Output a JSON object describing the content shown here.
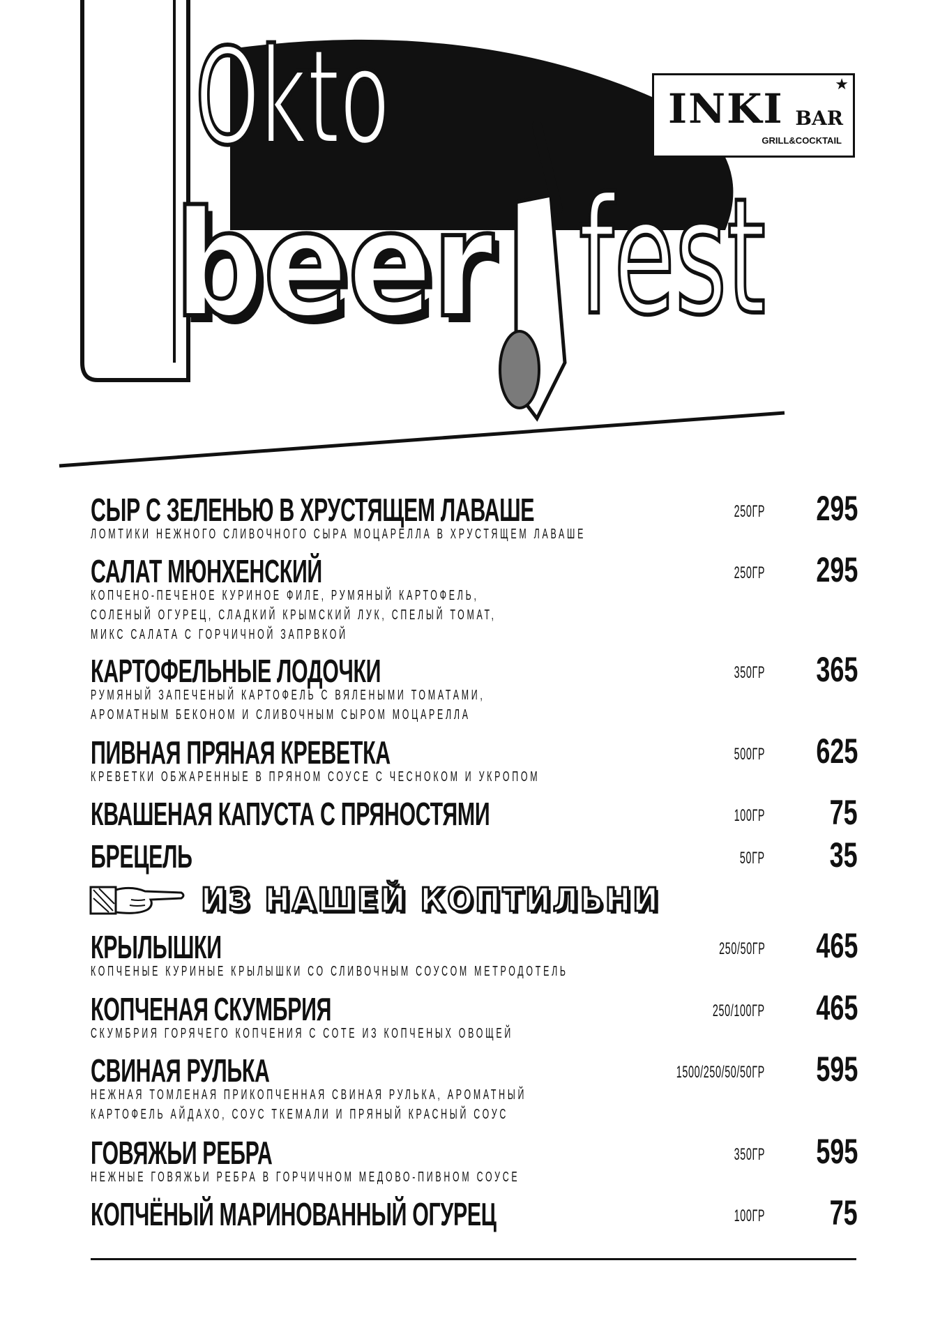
{
  "header": {
    "title_line1": "Okto",
    "title_word_a": "beer",
    "title_word_b": "fest",
    "logo": {
      "name": "INKI",
      "suffix": "BAR",
      "tagline": "GRILL&COCKTAIL"
    }
  },
  "menu": {
    "items": [
      {
        "title": "СЫР С ЗЕЛЕНЬЮ В ХРУСТЯЩЕМ ЛАВАШЕ",
        "desc": "ЛОМТИКИ НЕЖНОГО СЛИВОЧНОГО СЫРА МОЦАРЕЛЛА В ХРУСТЯЩЕМ ЛАВАШЕ",
        "weight": "250ГР",
        "price": "295"
      },
      {
        "title": "САЛАТ МЮНХЕНСКИЙ",
        "desc": "КОПЧЕНО-ПЕЧЕНОЕ КУРИНОЕ ФИЛЕ, РУМЯНЫЙ КАРТОФЕЛЬ,\nСОЛЕНЫЙ ОГУРЕЦ, СЛАДКИЙ КРЫМСКИЙ ЛУК, СПЕЛЫЙ ТОМАТ,\nМИКС САЛАТА С ГОРЧИЧНОЙ ЗАПРВКОЙ",
        "weight": "250ГР",
        "price": "295"
      },
      {
        "title": "КАРТОФЕЛЬНЫЕ ЛОДОЧКИ",
        "desc": "РУМЯНЫЙ ЗАПЕЧЕНЫЙ КАРТОФЕЛЬ С ВЯЛЕНЫМИ ТОМАТАМИ,\nАРОМАТНЫМ БЕКОНОМ И СЛИВОЧНЫМ СЫРОМ МОЦАРЕЛЛА",
        "weight": "350ГР",
        "price": "365"
      },
      {
        "title": "ПИВНАЯ ПРЯНАЯ КРЕВЕТКА",
        "desc": "КРЕВЕТКИ ОБЖАРЕННЫЕ В ПРЯНОМ СОУСЕ С ЧЕСНОКОМ И УКРОПОМ",
        "weight": "500ГР",
        "price": "625"
      },
      {
        "title": "КВАШЕНАЯ КАПУСТА С ПРЯНОСТЯМИ",
        "desc": "",
        "weight": "100ГР",
        "price": "75"
      },
      {
        "title": "БРЕЦЕЛЬ",
        "desc": "",
        "weight": "50ГР",
        "price": "35"
      }
    ],
    "section": {
      "title": "ИЗ НАШЕЙ КОПТИЛЬНИ",
      "icon": "pointing-hand-icon"
    },
    "smoked_items": [
      {
        "title": "КРЫЛЫШКИ",
        "desc": "КОПЧЕНЫЕ КУРИНЫЕ КРЫЛЫШКИ СО СЛИВОЧНЫМ СОУСОМ МЕТРОДОТЕЛЬ",
        "weight": "250/50ГР",
        "price": "465"
      },
      {
        "title": "КОПЧЕНАЯ СКУМБРИЯ",
        "desc": "СКУМБРИЯ ГОРЯЧЕГО КОПЧЕНИЯ С СОТЕ ИЗ КОПЧЕНЫХ ОВОЩЕЙ",
        "weight": "250/100ГР",
        "price": "465"
      },
      {
        "title": "СВИНАЯ РУЛЬКА",
        "desc": "НЕЖНАЯ ТОМЛЕНАЯ ПРИКОПЧЕННАЯ СВИНАЯ РУЛЬКА, АРОМАТНЫЙ\nКАРТОФЕЛЬ АЙДАХО, СОУС ТКЕМАЛИ И ПРЯНЫЙ КРАСНЫЙ СОУС",
        "weight": "1500/250/50/50ГР",
        "price": "595"
      },
      {
        "title": "ГОВЯЖЬИ РЕБРА",
        "desc": "НЕЖНЫЕ ГОВЯЖЬИ РЕБРА В ГОРЧИЧНОМ МЕДОВО-ПИВНОМ СОУСЕ",
        "weight": "350ГР",
        "price": "595"
      },
      {
        "title": "КОПЧЁНЫЙ МАРИНОВАННЫЙ ОГУРЕЦ",
        "desc": "",
        "weight": "100ГР",
        "price": "75"
      }
    ]
  },
  "colors": {
    "ink": "#111111",
    "background": "#ffffff",
    "tap_grey": "#7a7a7a"
  }
}
